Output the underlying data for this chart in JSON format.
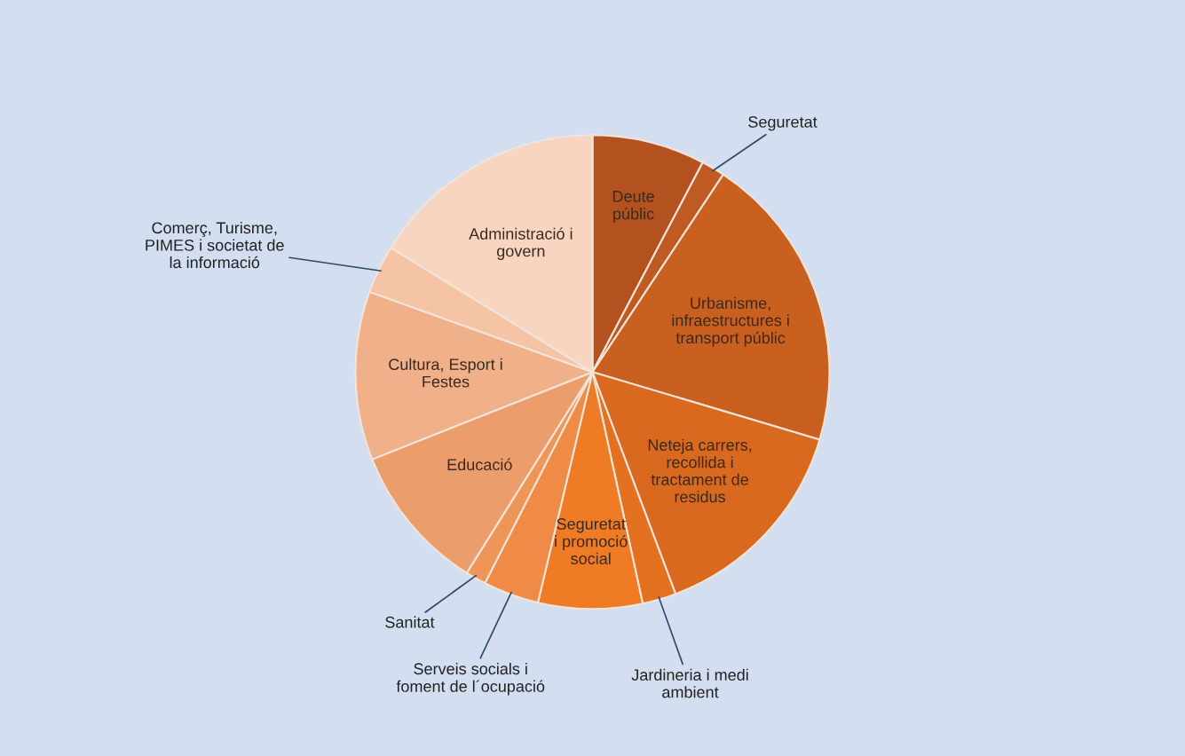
{
  "chart_data": {
    "type": "pie",
    "categories": [
      "Deute públic",
      "Seguretat",
      "Urbanisme, infraestructures i transport públic",
      "Neteja carrers, recollida i tractament de residus",
      "Jardineria i medi ambient",
      "Seguretat i promoció social",
      "Serveis socials i foment de l´ocupació",
      "Sanitat",
      "Educació",
      "Cultura, Esport i Festes",
      "Comerç, Turisme, PIMES i societat de la informació",
      "Administració i govern"
    ],
    "values": [
      7.7,
      1.6,
      20.3,
      14.7,
      2.3,
      7.1,
      3.8,
      1.4,
      10.1,
      11.5,
      3.3,
      16.2
    ],
    "colors": [
      "#b4521f",
      "#bf5a22",
      "#c9601f",
      "#d8691f",
      "#e3711f",
      "#ef7c24",
      "#f08b47",
      "#ee9558",
      "#eb9e6c",
      "#f0b08a",
      "#f5c4a5",
      "#f8d5c0"
    ],
    "legend": false
  }
}
